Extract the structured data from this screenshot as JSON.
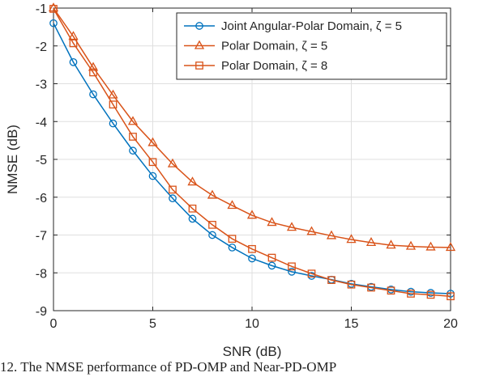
{
  "chart_data": {
    "type": "line",
    "title": "",
    "xlabel": "SNR (dB)",
    "ylabel": "NMSE (dB)",
    "xlim": [
      0,
      20
    ],
    "ylim": [
      -9,
      -1
    ],
    "x_ticks": [
      0,
      5,
      10,
      15,
      20
    ],
    "y_ticks": [
      -1,
      -2,
      -3,
      -4,
      -5,
      -6,
      -7,
      -8,
      -9
    ],
    "x_tick_labels": [
      "0",
      "5",
      "10",
      "15",
      "20"
    ],
    "y_tick_labels": [
      "-1",
      "-2",
      "-3",
      "-4",
      "-5",
      "-6",
      "-7",
      "-8",
      "-9"
    ],
    "grid": true,
    "legend_position": "top-right",
    "x": [
      0,
      1,
      2,
      3,
      4,
      5,
      6,
      7,
      8,
      9,
      10,
      11,
      12,
      13,
      14,
      15,
      16,
      17,
      18,
      19,
      20
    ],
    "series": [
      {
        "name": "Joint Angular-Polar Domain, ζ = 5",
        "color": "#0072BD",
        "marker": "circle",
        "values": [
          -1.4,
          -2.43,
          -3.28,
          -4.05,
          -4.77,
          -5.44,
          -6.03,
          -6.57,
          -7.0,
          -7.33,
          -7.62,
          -7.81,
          -7.97,
          -8.08,
          -8.18,
          -8.29,
          -8.37,
          -8.44,
          -8.5,
          -8.53,
          -8.55
        ]
      },
      {
        "name": "Polar Domain, ζ = 5",
        "color": "#D95319",
        "marker": "triangle",
        "values": [
          -1.0,
          -1.75,
          -2.57,
          -3.3,
          -4.0,
          -4.56,
          -5.12,
          -5.6,
          -5.95,
          -6.22,
          -6.48,
          -6.67,
          -6.8,
          -6.91,
          -7.02,
          -7.12,
          -7.2,
          -7.27,
          -7.3,
          -7.32,
          -7.33
        ]
      },
      {
        "name": "Polar Domain, ζ = 8",
        "color": "#D95319",
        "marker": "square",
        "values": [
          -1.02,
          -1.93,
          -2.7,
          -3.55,
          -4.4,
          -5.07,
          -5.8,
          -6.3,
          -6.73,
          -7.1,
          -7.37,
          -7.6,
          -7.83,
          -8.02,
          -8.19,
          -8.31,
          -8.39,
          -8.47,
          -8.55,
          -8.58,
          -8.62
        ]
      }
    ]
  },
  "caption": "12.   The NMSE performance of PD-OMP and Near-PD-OMP"
}
